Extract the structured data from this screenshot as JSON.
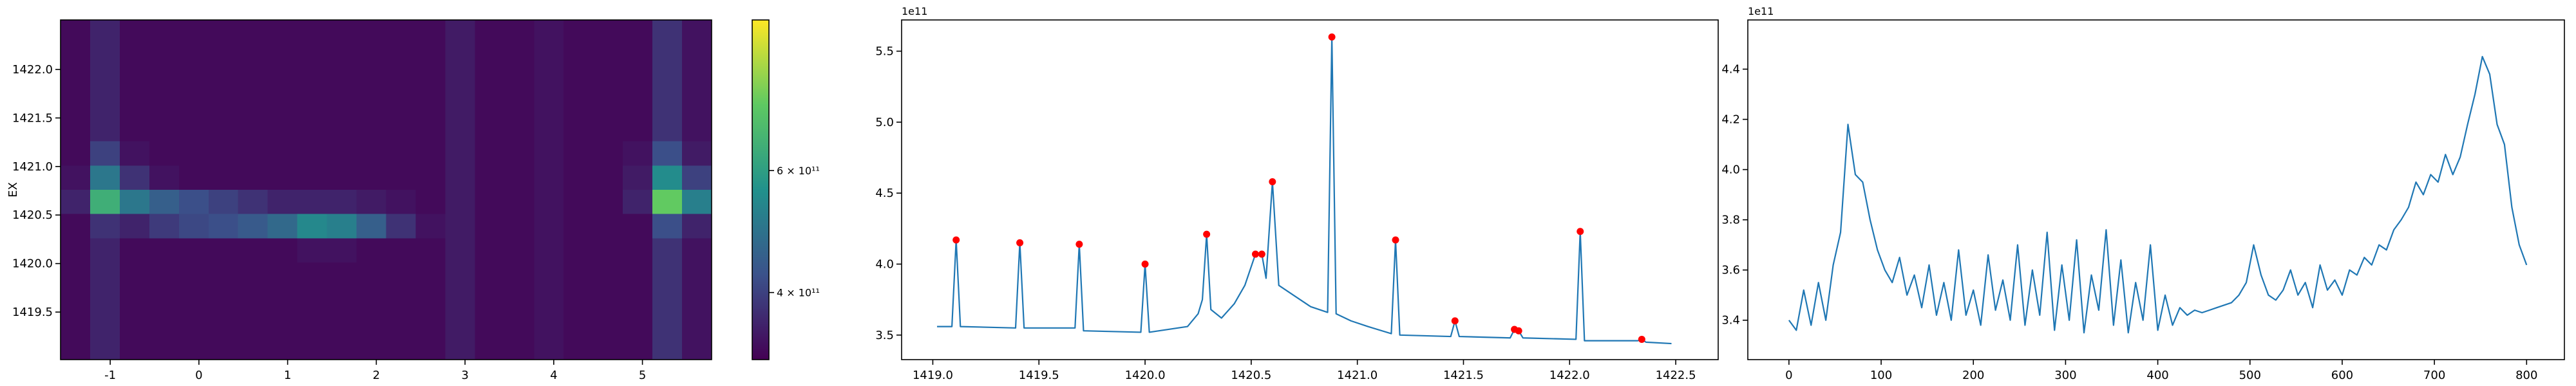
{
  "chart_data": [
    {
      "type": "heatmap",
      "ylabel": "EX",
      "xlim": [
        -1.56,
        5.78
      ],
      "ylim": [
        1419.01,
        1422.51
      ],
      "xticks": [
        -1,
        0,
        1,
        2,
        3,
        4,
        5
      ],
      "yticks": [
        1419.5,
        {
          "value": 1420.0,
          "label": "1420.0"
        },
        1420.5,
        {
          "value": 1421.0,
          "label": "1421.0"
        },
        1421.5,
        {
          "value": 1422.0,
          "label": "1422.0"
        }
      ],
      "colormap": "viridis",
      "cscale": "log",
      "clim": [
        320000000000.0,
        990000000000.0
      ],
      "cticks": [
        {
          "value": 400000000000.0,
          "label": "4 × 10¹¹"
        },
        {
          "value": 600000000000.0,
          "label": "6 × 10¹¹"
        }
      ],
      "z": [
        [
          330000000000.0,
          360000000000.0,
          330000000000.0,
          330000000000.0,
          330000000000.0,
          330000000000.0,
          330000000000.0,
          330000000000.0,
          330000000000.0,
          330000000000.0,
          330000000000.0,
          330000000000.0,
          330000000000.0,
          350000000000.0,
          330000000000.0,
          330000000000.0,
          340000000000.0,
          330000000000.0,
          330000000000.0,
          330000000000.0,
          380000000000.0,
          340000000000.0
        ],
        [
          330000000000.0,
          360000000000.0,
          330000000000.0,
          330000000000.0,
          330000000000.0,
          330000000000.0,
          330000000000.0,
          330000000000.0,
          330000000000.0,
          330000000000.0,
          330000000000.0,
          330000000000.0,
          330000000000.0,
          350000000000.0,
          330000000000.0,
          330000000000.0,
          340000000000.0,
          330000000000.0,
          330000000000.0,
          330000000000.0,
          380000000000.0,
          340000000000.0
        ],
        [
          330000000000.0,
          360000000000.0,
          330000000000.0,
          330000000000.0,
          330000000000.0,
          330000000000.0,
          330000000000.0,
          330000000000.0,
          330000000000.0,
          330000000000.0,
          330000000000.0,
          330000000000.0,
          330000000000.0,
          350000000000.0,
          330000000000.0,
          330000000000.0,
          340000000000.0,
          330000000000.0,
          330000000000.0,
          330000000000.0,
          380000000000.0,
          340000000000.0
        ],
        [
          330000000000.0,
          360000000000.0,
          330000000000.0,
          330000000000.0,
          330000000000.0,
          330000000000.0,
          330000000000.0,
          330000000000.0,
          330000000000.0,
          330000000000.0,
          330000000000.0,
          330000000000.0,
          330000000000.0,
          350000000000.0,
          330000000000.0,
          330000000000.0,
          340000000000.0,
          330000000000.0,
          330000000000.0,
          330000000000.0,
          380000000000.0,
          340000000000.0
        ],
        [
          330000000000.0,
          360000000000.0,
          330000000000.0,
          330000000000.0,
          330000000000.0,
          330000000000.0,
          330000000000.0,
          330000000000.0,
          330000000000.0,
          330000000000.0,
          330000000000.0,
          330000000000.0,
          330000000000.0,
          350000000000.0,
          330000000000.0,
          330000000000.0,
          340000000000.0,
          330000000000.0,
          330000000000.0,
          330000000000.0,
          380000000000.0,
          340000000000.0
        ],
        [
          330000000000.0,
          400000000000.0,
          340000000000.0,
          330000000000.0,
          330000000000.0,
          330000000000.0,
          330000000000.0,
          330000000000.0,
          330000000000.0,
          330000000000.0,
          330000000000.0,
          330000000000.0,
          330000000000.0,
          350000000000.0,
          330000000000.0,
          330000000000.0,
          340000000000.0,
          330000000000.0,
          330000000000.0,
          340000000000.0,
          420000000000.0,
          350000000000.0
        ],
        [
          340000000000.0,
          500000000000.0,
          380000000000.0,
          340000000000.0,
          330000000000.0,
          330000000000.0,
          330000000000.0,
          330000000000.0,
          330000000000.0,
          330000000000.0,
          330000000000.0,
          330000000000.0,
          330000000000.0,
          350000000000.0,
          330000000000.0,
          330000000000.0,
          340000000000.0,
          330000000000.0,
          330000000000.0,
          350000000000.0,
          550000000000.0,
          400000000000.0
        ],
        [
          360000000000.0,
          650000000000.0,
          500000000000.0,
          450000000000.0,
          420000000000.0,
          400000000000.0,
          380000000000.0,
          360000000000.0,
          360000000000.0,
          360000000000.0,
          350000000000.0,
          340000000000.0,
          330000000000.0,
          350000000000.0,
          330000000000.0,
          330000000000.0,
          340000000000.0,
          330000000000.0,
          330000000000.0,
          360000000000.0,
          750000000000.0,
          520000000000.0
        ],
        [
          330000000000.0,
          380000000000.0,
          360000000000.0,
          390000000000.0,
          410000000000.0,
          420000000000.0,
          440000000000.0,
          470000000000.0,
          540000000000.0,
          520000000000.0,
          450000000000.0,
          380000000000.0,
          340000000000.0,
          350000000000.0,
          330000000000.0,
          330000000000.0,
          340000000000.0,
          330000000000.0,
          330000000000.0,
          330000000000.0,
          420000000000.0,
          360000000000.0
        ],
        [
          330000000000.0,
          360000000000.0,
          330000000000.0,
          330000000000.0,
          330000000000.0,
          330000000000.0,
          330000000000.0,
          330000000000.0,
          340000000000.0,
          340000000000.0,
          330000000000.0,
          330000000000.0,
          330000000000.0,
          350000000000.0,
          330000000000.0,
          330000000000.0,
          340000000000.0,
          330000000000.0,
          330000000000.0,
          330000000000.0,
          380000000000.0,
          340000000000.0
        ],
        [
          330000000000.0,
          360000000000.0,
          330000000000.0,
          330000000000.0,
          330000000000.0,
          330000000000.0,
          330000000000.0,
          330000000000.0,
          330000000000.0,
          330000000000.0,
          330000000000.0,
          330000000000.0,
          330000000000.0,
          350000000000.0,
          330000000000.0,
          330000000000.0,
          340000000000.0,
          330000000000.0,
          330000000000.0,
          330000000000.0,
          380000000000.0,
          340000000000.0
        ],
        [
          330000000000.0,
          360000000000.0,
          330000000000.0,
          330000000000.0,
          330000000000.0,
          330000000000.0,
          330000000000.0,
          330000000000.0,
          330000000000.0,
          330000000000.0,
          330000000000.0,
          330000000000.0,
          330000000000.0,
          350000000000.0,
          330000000000.0,
          330000000000.0,
          340000000000.0,
          330000000000.0,
          330000000000.0,
          330000000000.0,
          380000000000.0,
          340000000000.0
        ],
        [
          330000000000.0,
          360000000000.0,
          330000000000.0,
          330000000000.0,
          330000000000.0,
          330000000000.0,
          330000000000.0,
          330000000000.0,
          330000000000.0,
          330000000000.0,
          330000000000.0,
          330000000000.0,
          330000000000.0,
          350000000000.0,
          330000000000.0,
          330000000000.0,
          340000000000.0,
          330000000000.0,
          330000000000.0,
          330000000000.0,
          380000000000.0,
          340000000000.0
        ],
        [
          330000000000.0,
          360000000000.0,
          330000000000.0,
          330000000000.0,
          330000000000.0,
          330000000000.0,
          330000000000.0,
          330000000000.0,
          330000000000.0,
          330000000000.0,
          330000000000.0,
          330000000000.0,
          330000000000.0,
          350000000000.0,
          330000000000.0,
          330000000000.0,
          340000000000.0,
          330000000000.0,
          330000000000.0,
          330000000000.0,
          380000000000.0,
          340000000000.0
        ]
      ]
    },
    {
      "type": "line",
      "offset_label": "1e11",
      "xlim": [
        1418.853,
        1422.7
      ],
      "ylim": [
        3.327,
        5.72
      ],
      "xticks": [
        {
          "value": 1419.0,
          "label": "1419.0"
        },
        1419.5,
        {
          "value": 1420.0,
          "label": "1420.0"
        },
        1420.5,
        {
          "value": 1421.0,
          "label": "1421.0"
        },
        1421.5,
        {
          "value": 1422.0,
          "label": "1422.0"
        },
        1422.5
      ],
      "yticks": [
        3.5,
        {
          "value": 4.0,
          "label": "4.0"
        },
        4.5,
        {
          "value": 5.0,
          "label": "5.0"
        },
        5.5
      ],
      "series": [
        {
          "style": "line",
          "color": "#1f77b4",
          "x": [
            1419.02,
            1419.09,
            1419.11,
            1419.13,
            1419.39,
            1419.41,
            1419.43,
            1419.67,
            1419.69,
            1419.71,
            1419.98,
            1420.0,
            1420.02,
            1420.2,
            1420.25,
            1420.27,
            1420.29,
            1420.31,
            1420.36,
            1420.42,
            1420.47,
            1420.52,
            1420.55,
            1420.57,
            1420.6,
            1420.63,
            1420.7,
            1420.78,
            1420.86,
            1420.88,
            1420.9,
            1420.97,
            1421.05,
            1421.16,
            1421.18,
            1421.2,
            1421.44,
            1421.46,
            1421.48,
            1421.72,
            1421.74,
            1421.76,
            1421.78,
            1422.03,
            1422.05,
            1422.07,
            1422.32,
            1422.34,
            1422.36,
            1422.48
          ],
          "values": [
            3.56,
            3.56,
            4.17,
            3.56,
            3.55,
            4.15,
            3.55,
            3.55,
            4.14,
            3.53,
            3.52,
            4.0,
            3.52,
            3.56,
            3.65,
            3.75,
            4.21,
            3.68,
            3.62,
            3.72,
            3.85,
            4.07,
            4.07,
            3.9,
            4.58,
            3.85,
            3.78,
            3.7,
            3.66,
            5.6,
            3.65,
            3.6,
            3.56,
            3.51,
            4.17,
            3.5,
            3.49,
            3.6,
            3.49,
            3.48,
            3.54,
            3.53,
            3.48,
            3.47,
            4.23,
            3.46,
            3.46,
            3.47,
            3.45,
            3.44
          ]
        },
        {
          "style": "markers",
          "color": "#ff0000",
          "x": [
            1419.11,
            1419.41,
            1419.69,
            1420.0,
            1420.29,
            1420.52,
            1420.55,
            1420.6,
            1420.88,
            1421.18,
            1421.46,
            1421.74,
            1421.76,
            1422.05,
            1422.34
          ],
          "values": [
            4.17,
            4.15,
            4.14,
            4.0,
            4.21,
            4.07,
            4.07,
            4.58,
            5.6,
            4.17,
            3.6,
            3.54,
            3.53,
            4.23,
            3.47
          ]
        }
      ]
    },
    {
      "type": "line",
      "offset_label": "1e11",
      "xlim": [
        -44.6,
        841
      ],
      "ylim": [
        3.243,
        4.596
      ],
      "xticks": [
        0,
        100,
        200,
        300,
        400,
        500,
        600,
        700,
        800
      ],
      "yticks": [
        3.4,
        3.6,
        3.8,
        {
          "value": 4.0,
          "label": "4.0"
        },
        4.2,
        4.4
      ],
      "series": [
        {
          "style": "line",
          "color": "#1f77b4",
          "x": [
            0,
            8,
            16,
            24,
            32,
            40,
            48,
            56,
            64,
            72,
            80,
            88,
            96,
            104,
            112,
            120,
            128,
            136,
            144,
            152,
            160,
            168,
            176,
            184,
            192,
            200,
            208,
            216,
            224,
            232,
            240,
            248,
            256,
            264,
            272,
            280,
            288,
            296,
            304,
            312,
            320,
            328,
            336,
            344,
            352,
            360,
            368,
            376,
            384,
            392,
            400,
            408,
            416,
            424,
            432,
            440,
            448,
            456,
            464,
            472,
            480,
            488,
            496,
            504,
            512,
            520,
            528,
            536,
            544,
            552,
            560,
            568,
            576,
            584,
            592,
            600,
            608,
            616,
            624,
            632,
            640,
            648,
            656,
            664,
            672,
            680,
            688,
            696,
            704,
            712,
            720,
            728,
            736,
            744,
            752,
            760,
            768,
            776,
            784,
            792,
            800
          ],
          "values": [
            3.4,
            3.36,
            3.52,
            3.38,
            3.55,
            3.4,
            3.62,
            3.75,
            4.18,
            3.98,
            3.95,
            3.8,
            3.68,
            3.6,
            3.55,
            3.65,
            3.5,
            3.58,
            3.45,
            3.62,
            3.42,
            3.55,
            3.4,
            3.68,
            3.42,
            3.52,
            3.38,
            3.66,
            3.44,
            3.56,
            3.4,
            3.7,
            3.38,
            3.6,
            3.42,
            3.75,
            3.36,
            3.62,
            3.4,
            3.72,
            3.35,
            3.58,
            3.44,
            3.76,
            3.38,
            3.64,
            3.35,
            3.55,
            3.4,
            3.7,
            3.36,
            3.5,
            3.38,
            3.45,
            3.42,
            3.44,
            3.43,
            3.44,
            3.45,
            3.46,
            3.47,
            3.5,
            3.55,
            3.7,
            3.58,
            3.5,
            3.48,
            3.52,
            3.6,
            3.5,
            3.55,
            3.45,
            3.62,
            3.52,
            3.56,
            3.5,
            3.6,
            3.58,
            3.65,
            3.62,
            3.7,
            3.68,
            3.76,
            3.8,
            3.85,
            3.95,
            3.9,
            3.98,
            3.95,
            4.06,
            3.98,
            4.05,
            4.18,
            4.3,
            4.45,
            4.38,
            4.18,
            4.1,
            3.85,
            3.7,
            3.62
          ]
        }
      ]
    }
  ]
}
